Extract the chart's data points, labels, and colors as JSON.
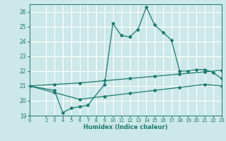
{
  "title": "",
  "xlabel": "Humidex (Indice chaleur)",
  "bg_color": "#cce8e8",
  "grid_color": "#ffffff",
  "line_color": "#1a7a6e",
  "xlim": [
    0,
    23
  ],
  "ylim": [
    19,
    26.5
  ],
  "yticks": [
    19,
    20,
    21,
    22,
    23,
    24,
    25,
    26
  ],
  "xticks": [
    0,
    2,
    3,
    4,
    5,
    6,
    7,
    8,
    9,
    10,
    11,
    12,
    13,
    14,
    15,
    16,
    17,
    18,
    19,
    20,
    21,
    22,
    23
  ],
  "series1_x": [
    0,
    3,
    4,
    5,
    6,
    7,
    9,
    10,
    11,
    12,
    13,
    14,
    15,
    16,
    17,
    18,
    19,
    20,
    21,
    22,
    23
  ],
  "series1_y": [
    21.0,
    20.7,
    19.2,
    19.5,
    19.6,
    19.7,
    21.1,
    25.2,
    24.4,
    24.3,
    24.8,
    26.3,
    25.1,
    24.6,
    24.1,
    22.0,
    22.0,
    22.1,
    22.1,
    21.9,
    21.5
  ],
  "series2_x": [
    0,
    3,
    6,
    9,
    12,
    15,
    18,
    21,
    23
  ],
  "series2_y": [
    21.0,
    21.1,
    21.2,
    21.35,
    21.5,
    21.65,
    21.8,
    21.95,
    22.05
  ],
  "series3_x": [
    0,
    3,
    6,
    9,
    12,
    15,
    18,
    21,
    23
  ],
  "series3_y": [
    21.0,
    20.55,
    20.1,
    20.3,
    20.5,
    20.7,
    20.9,
    21.1,
    21.0
  ]
}
